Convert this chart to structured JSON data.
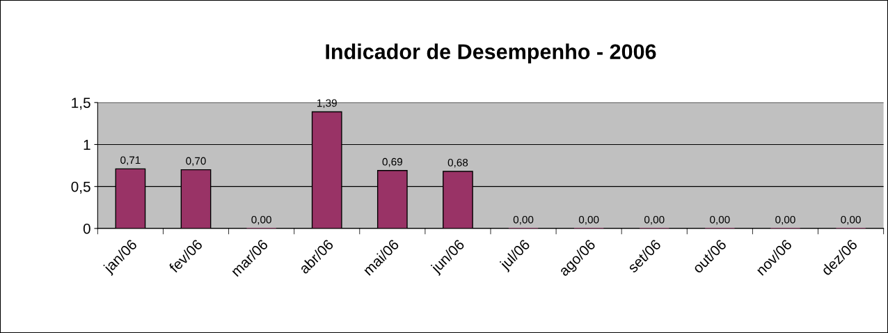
{
  "chart_data": {
    "type": "bar",
    "title": "Indicador de Desempenho - 2006",
    "categories": [
      "jan/06",
      "fev/06",
      "mar/06",
      "abr/06",
      "mai/06",
      "jun/06",
      "jul/06",
      "ago/06",
      "set/06",
      "out/06",
      "nov/06",
      "dez/06"
    ],
    "values": [
      0.71,
      0.7,
      0.0,
      1.39,
      0.69,
      0.68,
      0.0,
      0.0,
      0.0,
      0.0,
      0.0,
      0.0
    ],
    "value_labels": [
      "0,71",
      "0,70",
      "0,00",
      "1,39",
      "0,69",
      "0,68",
      "0,00",
      "0,00",
      "0,00",
      "0,00",
      "0,00",
      "0,00"
    ],
    "color": "#993366",
    "ylim": [
      0,
      1.5
    ],
    "yticks": [
      0,
      {
        "value": 0.5,
        "label": "0,5"
      },
      1,
      {
        "value": 1.5,
        "label": "1,5"
      }
    ],
    "grid": "y",
    "legend": false
  }
}
